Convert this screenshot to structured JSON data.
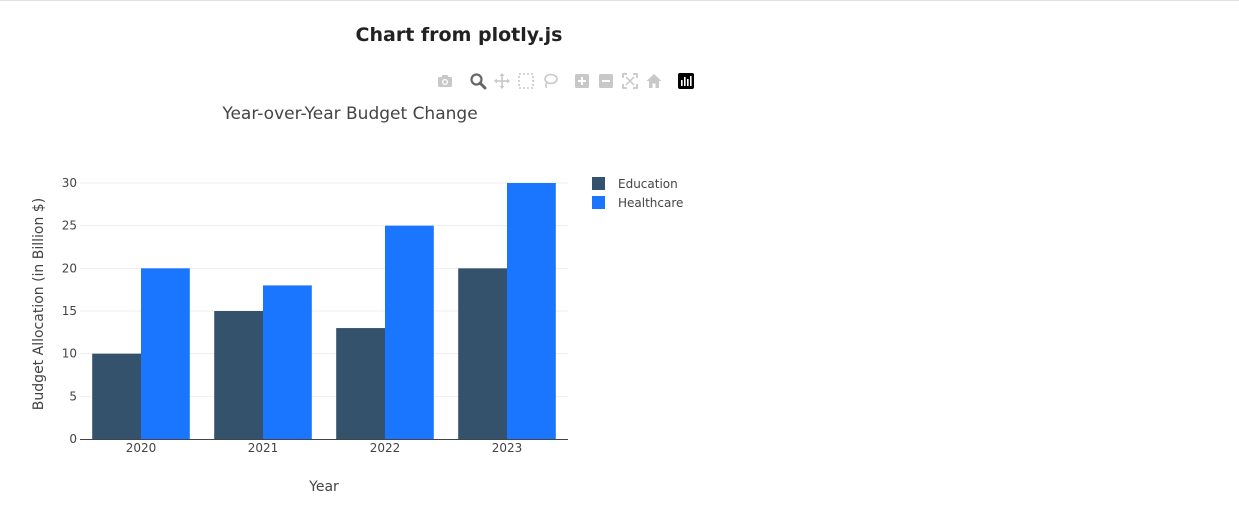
{
  "page": {
    "title": "Chart from plotly.js"
  },
  "modebar": {
    "icons": [
      "camera-icon",
      "zoom-icon",
      "pan-icon",
      "box-select-icon",
      "lasso-select-icon",
      "zoom-in-icon",
      "zoom-out-icon",
      "autoscale-icon",
      "reset-axes-icon",
      "plotly-logo-icon"
    ],
    "active": "zoom-icon"
  },
  "chart_data": {
    "type": "bar",
    "title": "Year-over-Year Budget Change",
    "xlabel": "Year",
    "ylabel": "Budget Allocation (in Billion $)",
    "categories": [
      "2020",
      "2021",
      "2022",
      "2023"
    ],
    "series": [
      {
        "name": "Education",
        "color": "#34526c",
        "values": [
          10,
          15,
          13,
          20
        ]
      },
      {
        "name": "Healthcare",
        "color": "#1a75ff",
        "values": [
          20,
          18,
          25,
          30
        ]
      }
    ],
    "ylim": [
      0,
      30
    ],
    "yticks": [
      0,
      5,
      10,
      15,
      20,
      25,
      30
    ],
    "grid": true,
    "legend_position": "top-right",
    "barmode": "group"
  }
}
